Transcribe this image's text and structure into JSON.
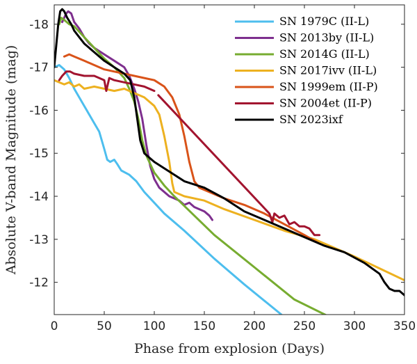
{
  "chart_data": {
    "type": "line",
    "xlabel": "Phase from explosion (Days)",
    "ylabel": "Absolute V-band Magnitude (mag)",
    "xlim": [
      0,
      350
    ],
    "ylim": [
      -11.25,
      -18.45
    ],
    "y_inverted": true,
    "x_ticks": [
      "0",
      "50",
      "100",
      "150",
      "200",
      "250",
      "300",
      "350"
    ],
    "y_ticks": [
      "-18",
      "-17",
      "-16",
      "-15",
      "-14",
      "-13",
      "-12"
    ],
    "legend_position": "top-right",
    "grid": false,
    "series": [
      {
        "name": "SN 1979C (II-L)",
        "color": "#4dbeee",
        "points": [
          [
            0,
            -17.0
          ],
          [
            5,
            -17.05
          ],
          [
            10,
            -16.95
          ],
          [
            15,
            -16.75
          ],
          [
            20,
            -16.5
          ],
          [
            25,
            -16.3
          ],
          [
            30,
            -16.1
          ],
          [
            35,
            -15.9
          ],
          [
            40,
            -15.7
          ],
          [
            45,
            -15.5
          ],
          [
            50,
            -15.1
          ],
          [
            53,
            -14.85
          ],
          [
            56,
            -14.8
          ],
          [
            60,
            -14.85
          ],
          [
            63,
            -14.75
          ],
          [
            67,
            -14.6
          ],
          [
            75,
            -14.5
          ],
          [
            82,
            -14.35
          ],
          [
            90,
            -14.1
          ],
          [
            100,
            -13.85
          ],
          [
            110,
            -13.6
          ],
          [
            130,
            -13.2
          ],
          [
            160,
            -12.55
          ],
          [
            190,
            -11.95
          ],
          [
            227,
            -11.25
          ]
        ]
      },
      {
        "name": "SN 2013by (II-L)",
        "color": "#7e2f8e",
        "points": [
          [
            8,
            -18.05
          ],
          [
            10,
            -18.15
          ],
          [
            12,
            -18.25
          ],
          [
            14,
            -18.3
          ],
          [
            17,
            -18.25
          ],
          [
            20,
            -18.05
          ],
          [
            25,
            -17.9
          ],
          [
            30,
            -17.7
          ],
          [
            35,
            -17.55
          ],
          [
            40,
            -17.45
          ],
          [
            50,
            -17.3
          ],
          [
            60,
            -17.15
          ],
          [
            70,
            -17.0
          ],
          [
            75,
            -16.8
          ],
          [
            80,
            -16.5
          ],
          [
            84,
            -16.2
          ],
          [
            88,
            -15.8
          ],
          [
            92,
            -15.2
          ],
          [
            96,
            -14.7
          ],
          [
            100,
            -14.4
          ],
          [
            105,
            -14.2
          ],
          [
            115,
            -14.0
          ],
          [
            125,
            -13.9
          ],
          [
            130,
            -13.8
          ],
          [
            135,
            -13.85
          ],
          [
            140,
            -13.75
          ],
          [
            145,
            -13.7
          ],
          [
            150,
            -13.65
          ],
          [
            155,
            -13.55
          ],
          [
            158,
            -13.45
          ]
        ]
      },
      {
        "name": "SN 2014G (II-L)",
        "color": "#77ac30",
        "points": [
          [
            5,
            -18.0
          ],
          [
            7,
            -18.15
          ],
          [
            10,
            -18.1
          ],
          [
            15,
            -18.0
          ],
          [
            20,
            -17.95
          ],
          [
            30,
            -17.7
          ],
          [
            40,
            -17.45
          ],
          [
            50,
            -17.2
          ],
          [
            60,
            -17.0
          ],
          [
            70,
            -16.75
          ],
          [
            75,
            -16.5
          ],
          [
            80,
            -16.2
          ],
          [
            84,
            -15.8
          ],
          [
            88,
            -15.3
          ],
          [
            92,
            -14.95
          ],
          [
            96,
            -14.75
          ],
          [
            100,
            -14.55
          ],
          [
            110,
            -14.25
          ],
          [
            120,
            -14.0
          ],
          [
            140,
            -13.55
          ],
          [
            160,
            -13.1
          ],
          [
            200,
            -12.35
          ],
          [
            240,
            -11.6
          ],
          [
            288,
            -11.05
          ]
        ]
      },
      {
        "name": "SN 2017ivv (II-L)",
        "color": "#edb120",
        "points": [
          [
            0,
            -16.7
          ],
          [
            5,
            -16.65
          ],
          [
            10,
            -16.6
          ],
          [
            15,
            -16.65
          ],
          [
            20,
            -16.55
          ],
          [
            25,
            -16.6
          ],
          [
            30,
            -16.5
          ],
          [
            40,
            -16.55
          ],
          [
            50,
            -16.5
          ],
          [
            60,
            -16.45
          ],
          [
            70,
            -16.5
          ],
          [
            80,
            -16.4
          ],
          [
            90,
            -16.3
          ],
          [
            100,
            -16.1
          ],
          [
            105,
            -15.9
          ],
          [
            110,
            -15.4
          ],
          [
            115,
            -14.8
          ],
          [
            118,
            -14.3
          ],
          [
            120,
            -14.1
          ],
          [
            125,
            -14.05
          ],
          [
            130,
            -14.0
          ],
          [
            150,
            -13.9
          ],
          [
            170,
            -13.7
          ],
          [
            200,
            -13.45
          ],
          [
            230,
            -13.2
          ],
          [
            260,
            -13.0
          ],
          [
            300,
            -12.6
          ],
          [
            350,
            -12.05
          ]
        ]
      },
      {
        "name": "SN 1999em (II-P)",
        "color": "#d95319",
        "points": [
          [
            10,
            -17.25
          ],
          [
            15,
            -17.3
          ],
          [
            20,
            -17.25
          ],
          [
            30,
            -17.15
          ],
          [
            40,
            -17.05
          ],
          [
            50,
            -16.95
          ],
          [
            60,
            -16.9
          ],
          [
            70,
            -16.85
          ],
          [
            80,
            -16.8
          ],
          [
            90,
            -16.75
          ],
          [
            100,
            -16.7
          ],
          [
            110,
            -16.55
          ],
          [
            118,
            -16.3
          ],
          [
            125,
            -15.9
          ],
          [
            130,
            -15.4
          ],
          [
            135,
            -14.8
          ],
          [
            140,
            -14.35
          ],
          [
            145,
            -14.2
          ],
          [
            155,
            -14.1
          ],
          [
            170,
            -13.95
          ],
          [
            190,
            -13.8
          ],
          [
            210,
            -13.6
          ],
          [
            230,
            -13.35
          ],
          [
            250,
            -13.1
          ],
          [
            265,
            -12.9
          ]
        ]
      },
      {
        "name": "SN 2004et (II-P)",
        "color": "#a2142f",
        "points": [
          [
            5,
            -16.7
          ],
          [
            8,
            -16.8
          ],
          [
            12,
            -16.9
          ],
          [
            16,
            -16.9
          ],
          [
            20,
            -16.85
          ],
          [
            30,
            -16.8
          ],
          [
            40,
            -16.8
          ],
          [
            50,
            -16.7
          ],
          [
            52,
            -16.45
          ],
          [
            55,
            -16.75
          ],
          [
            60,
            -16.7
          ],
          [
            70,
            -16.65
          ],
          [
            80,
            -16.6
          ],
          [
            90,
            -16.55
          ],
          [
            100,
            -16.45
          ],
          [
            104,
            -16.35
          ],
          [
            215,
            -13.6
          ],
          [
            218,
            -13.4
          ],
          [
            220,
            -13.6
          ],
          [
            225,
            -13.5
          ],
          [
            230,
            -13.55
          ],
          [
            235,
            -13.35
          ],
          [
            240,
            -13.4
          ],
          [
            245,
            -13.3
          ],
          [
            250,
            -13.3
          ],
          [
            255,
            -13.25
          ],
          [
            260,
            -13.1
          ],
          [
            265,
            -13.1
          ]
        ],
        "gap_after_index": 14
      },
      {
        "name": "SN 2023ixf",
        "color": "#000000",
        "points": [
          [
            0,
            -17.0
          ],
          [
            2,
            -17.5
          ],
          [
            4,
            -18.0
          ],
          [
            6,
            -18.3
          ],
          [
            8,
            -18.35
          ],
          [
            10,
            -18.3
          ],
          [
            13,
            -18.15
          ],
          [
            17,
            -18.0
          ],
          [
            20,
            -17.85
          ],
          [
            25,
            -17.7
          ],
          [
            30,
            -17.55
          ],
          [
            40,
            -17.35
          ],
          [
            50,
            -17.15
          ],
          [
            60,
            -17.0
          ],
          [
            70,
            -16.85
          ],
          [
            76,
            -16.7
          ],
          [
            80,
            -16.3
          ],
          [
            83,
            -15.8
          ],
          [
            86,
            -15.3
          ],
          [
            90,
            -15.0
          ],
          [
            100,
            -14.8
          ],
          [
            110,
            -14.65
          ],
          [
            120,
            -14.5
          ],
          [
            130,
            -14.35
          ],
          [
            150,
            -14.2
          ],
          [
            170,
            -13.95
          ],
          [
            190,
            -13.65
          ],
          [
            210,
            -13.45
          ],
          [
            230,
            -13.25
          ],
          [
            250,
            -13.05
          ],
          [
            270,
            -12.85
          ],
          [
            290,
            -12.7
          ],
          [
            310,
            -12.45
          ],
          [
            325,
            -12.2
          ],
          [
            330,
            -12.0
          ],
          [
            335,
            -11.85
          ],
          [
            340,
            -11.8
          ],
          [
            345,
            -11.8
          ],
          [
            350,
            -11.7
          ]
        ]
      }
    ]
  }
}
